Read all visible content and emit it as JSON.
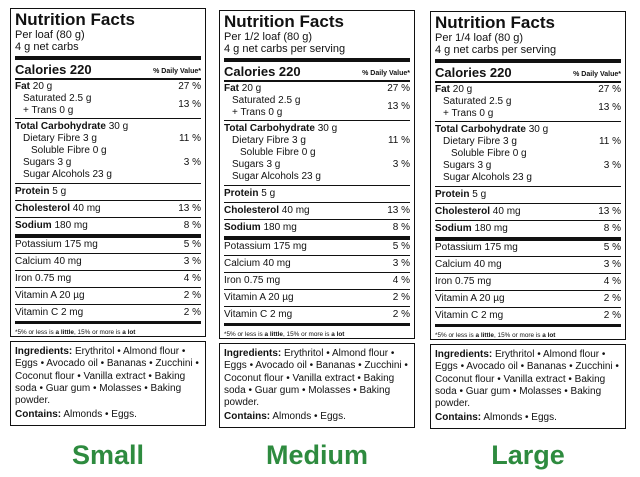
{
  "common": {
    "title": "Nutrition Facts",
    "calories_label": "Calories 220",
    "dv_header": "% Daily Value*",
    "fat": "Fat",
    "fat_amt": " 20 g",
    "fat_dv": "27 %",
    "sat": "Saturated 2.5 g",
    "trans": "+ Trans 0 g",
    "sat_dv": "13 %",
    "carb": "Total Carbohydrate",
    "carb_amt": " 30 g",
    "fibre": "Dietary Fibre 3 g",
    "fibre_dv": "11 %",
    "soluble": "Soluble Fibre 0 g",
    "sugars": "Sugars 3 g",
    "sugars_dv": "3 %",
    "alcohols": "Sugar Alcohols 23 g",
    "protein": "Protein",
    "protein_amt": " 5 g",
    "chol": "Cholesterol",
    "chol_amt": " 40 mg",
    "chol_dv": "13 %",
    "sodium": "Sodium",
    "sodium_amt": " 180 mg",
    "sodium_dv": "8 %",
    "potassium": "Potassium 175 mg",
    "potassium_dv": "5 %",
    "calcium": "Calcium 40 mg",
    "calcium_dv": "3 %",
    "iron": "Iron 0.75 mg",
    "iron_dv": "4 %",
    "vita": "Vitamin A 20 µg",
    "vita_dv": "2 %",
    "vitc": "Vitamin C 2 mg",
    "vitc_dv": "2 %",
    "foot_a": "*5% or less is ",
    "foot_b": "a little",
    "foot_c": ", 15% or more is ",
    "foot_d": "a lot",
    "ing_label": "Ingredients:",
    "ingredients": " Erythritol • Almond flour • Eggs • Avocado oil • Bananas • Zucchini • Coconut flour • Vanilla extract • Baking soda • Guar gum • Molasses • Baking powder.",
    "contains_label": "Contains:",
    "contains": " Almonds • Eggs."
  },
  "panels": [
    {
      "serving": "Per loaf (80 g)",
      "carbs_note": "4 g net carbs",
      "size": "Small"
    },
    {
      "serving": "Per 1/2 loaf (80 g)",
      "carbs_note": "4 g net carbs per serving",
      "size": "Medium"
    },
    {
      "serving": "Per 1/4 loaf (80 g)",
      "carbs_note": "4 g net carbs per serving",
      "size": "Large"
    }
  ]
}
